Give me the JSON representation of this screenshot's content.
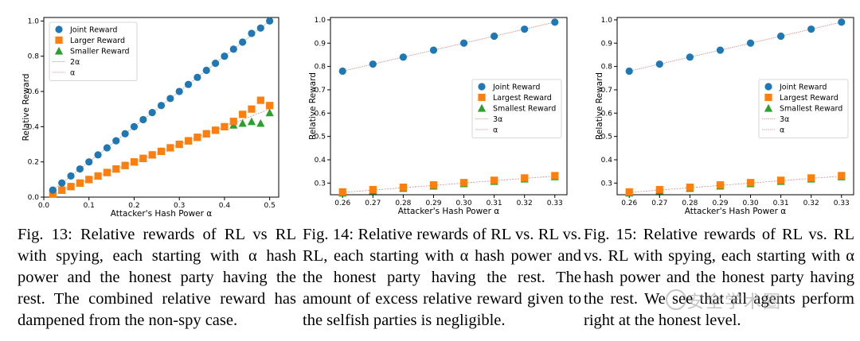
{
  "colors": {
    "joint": "#1f77b4",
    "larger": "#ff7f0e",
    "smaller": "#2ca02c",
    "line_2a": "#cc8888",
    "line_a": "#cc8888"
  },
  "chart_data": [
    {
      "type": "scatter",
      "xlabel": "Attacker's Hash Power α",
      "ylabel": "Relative Reward",
      "xlim": [
        0.0,
        0.52
      ],
      "ylim": [
        0.0,
        1.02
      ],
      "xticks": [
        "0.0",
        "0.1",
        "0.2",
        "0.3",
        "0.4",
        "0.5"
      ],
      "yticks": [
        "0.0",
        "0.2",
        "0.4",
        "0.6",
        "0.8",
        "1.0"
      ],
      "legend_position": "top-left",
      "x": [
        0.02,
        0.04,
        0.06,
        0.08,
        0.1,
        0.12,
        0.14,
        0.16,
        0.18,
        0.2,
        0.22,
        0.24,
        0.26,
        0.28,
        0.3,
        0.32,
        0.34,
        0.36,
        0.38,
        0.4,
        0.42,
        0.44,
        0.46,
        0.48,
        0.5
      ],
      "series": [
        {
          "name": "Joint Reward",
          "marker": "circle",
          "values": [
            0.04,
            0.08,
            0.12,
            0.16,
            0.2,
            0.24,
            0.28,
            0.32,
            0.36,
            0.4,
            0.44,
            0.48,
            0.52,
            0.56,
            0.6,
            0.64,
            0.68,
            0.72,
            0.76,
            0.8,
            0.84,
            0.88,
            0.93,
            0.96,
            1.0
          ]
        },
        {
          "name": "Larger Reward",
          "marker": "square",
          "values": [
            0.02,
            0.04,
            0.06,
            0.08,
            0.1,
            0.12,
            0.14,
            0.16,
            0.18,
            0.2,
            0.22,
            0.24,
            0.26,
            0.28,
            0.3,
            0.32,
            0.34,
            0.36,
            0.38,
            0.4,
            0.43,
            0.47,
            0.5,
            0.55,
            0.52
          ]
        },
        {
          "name": "Smaller Reward",
          "marker": "triangle",
          "values": [
            0.02,
            0.04,
            0.06,
            0.08,
            0.1,
            0.12,
            0.14,
            0.16,
            0.18,
            0.2,
            0.22,
            0.24,
            0.26,
            0.28,
            0.3,
            0.32,
            0.34,
            0.36,
            0.38,
            0.4,
            0.41,
            0.42,
            0.43,
            0.42,
            0.48
          ]
        }
      ],
      "lines": [
        {
          "name": "2α",
          "slope": 2
        },
        {
          "name": "α",
          "slope": 1
        }
      ]
    },
    {
      "type": "scatter",
      "xlabel": "Attacker's Hash Power α",
      "ylabel": "Relative Reward",
      "xlim": [
        0.256,
        0.334
      ],
      "ylim": [
        0.25,
        1.01
      ],
      "xticks": [
        "0.26",
        "0.27",
        "0.28",
        "0.29",
        "0.30",
        "0.31",
        "0.32",
        "0.33"
      ],
      "yticks": [
        "0.3",
        "0.4",
        "0.5",
        "0.6",
        "0.7",
        "0.8",
        "0.9",
        "1.0"
      ],
      "legend_position": "center-right",
      "x": [
        0.26,
        0.27,
        0.28,
        0.29,
        0.3,
        0.31,
        0.32,
        0.33
      ],
      "series": [
        {
          "name": "Joint Reward",
          "marker": "circle",
          "values": [
            0.78,
            0.81,
            0.84,
            0.87,
            0.9,
            0.93,
            0.96,
            0.99
          ]
        },
        {
          "name": "Largest Reward",
          "marker": "square",
          "values": [
            0.262,
            0.272,
            0.282,
            0.292,
            0.302,
            0.312,
            0.322,
            0.332
          ]
        },
        {
          "name": "Smallest Reward",
          "marker": "triangle",
          "values": [
            0.258,
            0.268,
            0.278,
            0.288,
            0.298,
            0.308,
            0.318,
            0.328
          ]
        }
      ],
      "lines": [
        {
          "name": "3α",
          "slope": 3
        },
        {
          "name": "α",
          "slope": 1
        }
      ]
    },
    {
      "type": "scatter",
      "xlabel": "Attacker's Hash Power α",
      "ylabel": "Relative Reward",
      "xlim": [
        0.256,
        0.334
      ],
      "ylim": [
        0.25,
        1.01
      ],
      "xticks": [
        "0.26",
        "0.27",
        "0.28",
        "0.29",
        "0.30",
        "0.31",
        "0.32",
        "0.33"
      ],
      "yticks": [
        "0.3",
        "0.4",
        "0.5",
        "0.6",
        "0.7",
        "0.8",
        "0.9",
        "1.0"
      ],
      "legend_position": "center-right",
      "x": [
        0.26,
        0.27,
        0.28,
        0.29,
        0.3,
        0.31,
        0.32,
        0.33
      ],
      "series": [
        {
          "name": "Joint Reward",
          "marker": "circle",
          "values": [
            0.78,
            0.81,
            0.84,
            0.87,
            0.9,
            0.93,
            0.96,
            0.99
          ]
        },
        {
          "name": "Largest Reward",
          "marker": "square",
          "values": [
            0.262,
            0.272,
            0.282,
            0.292,
            0.302,
            0.312,
            0.322,
            0.332
          ]
        },
        {
          "name": "Smallest Reward",
          "marker": "triangle",
          "values": [
            0.258,
            0.268,
            0.278,
            0.288,
            0.298,
            0.308,
            0.318,
            0.328
          ]
        }
      ],
      "lines": [
        {
          "name": "3α",
          "slope": 3
        },
        {
          "name": "α",
          "slope": 1
        }
      ]
    }
  ],
  "captions": [
    "Fig. 13: Relative rewards of RL vs RL with spying, each starting with α hash power and the honest party having the rest. The combined relative reward has dampened from the non-spy case.",
    "Fig. 14: Relative rewards of RL vs. RL vs. RL, each starting with α hash power and the honest party having the rest. The amount of excess relative reward given to the selfish parties is negligible.",
    "Fig. 15: Relative rewards of RL vs. RL vs. RL with spying, each starting with α hash power and the honest party having the rest. We see that all agents perform right at the honest level."
  ],
  "watermark": "安全学术圈"
}
